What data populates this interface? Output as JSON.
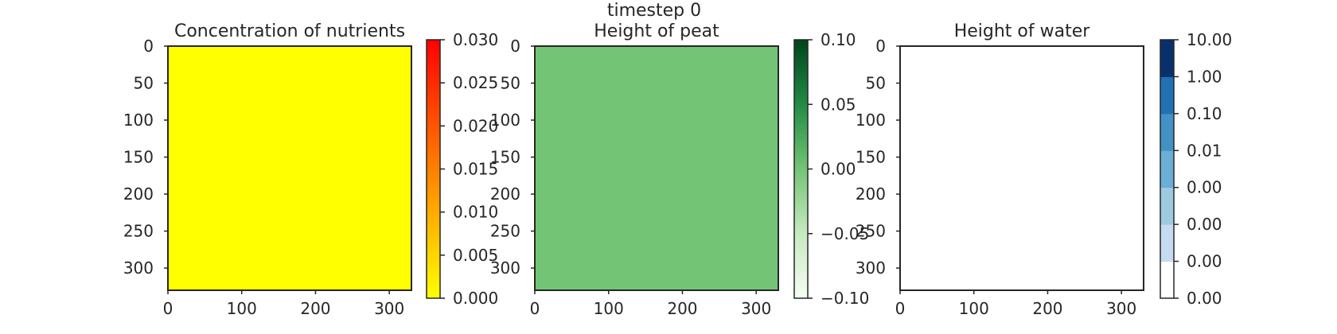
{
  "figure": {
    "suptitle": "timestep 0"
  },
  "chart_data": [
    {
      "type": "heatmap",
      "title": "Concentration of nutrients",
      "x_ticks": [
        "0",
        "100",
        "200",
        "300"
      ],
      "y_ticks": [
        "0",
        "50",
        "100",
        "150",
        "200",
        "250",
        "300"
      ],
      "x_range": [
        0,
        330
      ],
      "y_range": [
        0,
        330
      ],
      "field_value": 0.0,
      "field_color": "#ffff00",
      "colorbar": {
        "kind": "continuous",
        "range": [
          0.0,
          0.03
        ],
        "ticks": [
          0.0,
          0.005,
          0.01,
          0.015,
          0.02,
          0.025,
          0.03
        ],
        "tick_labels": [
          "0.000",
          "0.005",
          "0.010",
          "0.015",
          "0.020",
          "0.025",
          "0.030"
        ],
        "colors": [
          "#ffff00",
          "#ff0000"
        ]
      }
    },
    {
      "type": "heatmap",
      "title": "Height of peat",
      "x_ticks": [
        "0",
        "100",
        "200",
        "300"
      ],
      "y_ticks": [
        "0",
        "50",
        "100",
        "150",
        "200",
        "250",
        "300"
      ],
      "x_range": [
        0,
        330
      ],
      "y_range": [
        0,
        330
      ],
      "field_value": 0.0,
      "field_color": "#74c476",
      "colorbar": {
        "kind": "continuous",
        "range": [
          -0.1,
          0.1
        ],
        "ticks": [
          -0.1,
          -0.05,
          0.0,
          0.05,
          0.1
        ],
        "tick_labels": [
          "−0.10",
          "−0.05",
          "0.00",
          "0.05",
          "0.10"
        ],
        "colors": [
          "#f7fcf5",
          "#c7e9c0",
          "#74c476",
          "#238b45",
          "#00441b"
        ]
      }
    },
    {
      "type": "heatmap",
      "title": "Height of water",
      "x_ticks": [
        "0",
        "100",
        "200",
        "300"
      ],
      "y_ticks": [
        "0",
        "50",
        "100",
        "150",
        "200",
        "250",
        "300"
      ],
      "x_range": [
        0,
        330
      ],
      "y_range": [
        0,
        330
      ],
      "field_value": 0.0,
      "field_color": "#ffffff",
      "colorbar": {
        "kind": "discrete",
        "tick_labels": [
          "0.00",
          "0.00",
          "0.00",
          "0.00",
          "0.01",
          "0.10",
          "1.00",
          "10.00"
        ],
        "bands": [
          "#ffffff",
          "#c6dbef",
          "#9ecae1",
          "#6baed6",
          "#4292c6",
          "#2171b5",
          "#08306b"
        ]
      }
    }
  ]
}
